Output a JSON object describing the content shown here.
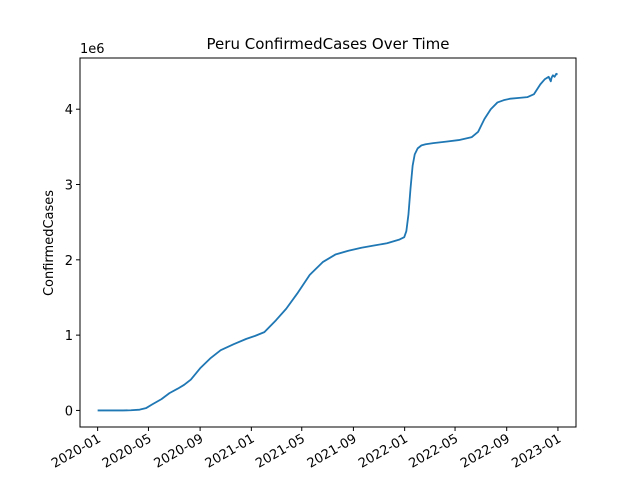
{
  "chart_data": {
    "type": "line",
    "title": "Peru  ConfirmedCases Over Time",
    "xlabel": "",
    "ylabel": "ConfirmedCases",
    "y_offset_label": "1e6",
    "y_scale_factor": 1000000,
    "xlim": [
      "2019-11-20",
      "2023-02-13"
    ],
    "ylim": [
      -220000,
      4680000
    ],
    "grid": false,
    "line_color": "#1f77b4",
    "x_ticks": [
      "2020-01-01",
      "2020-05-01",
      "2020-09-01",
      "2021-01-01",
      "2021-05-01",
      "2021-09-01",
      "2022-01-01",
      "2022-05-01",
      "2022-09-01",
      "2023-01-01"
    ],
    "x_tick_labels": [
      "2020-01",
      "2020-05",
      "2020-09",
      "2021-01",
      "2021-05",
      "2021-09",
      "2022-01",
      "2022-05",
      "2022-09",
      "2023-01"
    ],
    "y_ticks": [
      0,
      1000000,
      2000000,
      3000000,
      4000000
    ],
    "y_tick_labels": [
      "0",
      "1",
      "2",
      "3",
      "4"
    ],
    "series": [
      {
        "x": [
          "2020-01-01",
          "2020-03-01",
          "2020-03-20",
          "2020-04-10",
          "2020-04-25",
          "2020-05-10",
          "2020-06-01",
          "2020-06-20",
          "2020-07-10",
          "2020-07-25",
          "2020-08-10",
          "2020-09-01",
          "2020-09-25",
          "2020-10-20",
          "2020-11-20",
          "2020-12-20",
          "2021-01-10",
          "2021-02-01",
          "2021-03-01",
          "2021-03-25",
          "2021-04-20",
          "2021-05-20",
          "2021-06-20",
          "2021-07-20",
          "2021-08-20",
          "2021-09-20",
          "2021-10-20",
          "2021-11-20",
          "2021-12-20",
          "2021-12-31",
          "2022-01-05",
          "2022-01-10",
          "2022-01-15",
          "2022-01-20",
          "2022-01-25",
          "2022-02-01",
          "2022-02-10",
          "2022-02-20",
          "2022-03-10",
          "2022-04-10",
          "2022-05-10",
          "2022-06-10",
          "2022-06-25",
          "2022-07-10",
          "2022-07-25",
          "2022-08-10",
          "2022-08-25",
          "2022-09-10",
          "2022-10-01",
          "2022-10-20",
          "2022-11-05",
          "2022-11-20",
          "2022-12-01",
          "2022-12-10",
          "2022-12-15",
          "2022-12-17",
          "2022-12-20",
          "2022-12-24",
          "2022-12-28",
          "2022-12-31"
        ],
        "y": [
          0,
          0,
          2000,
          10000,
          30000,
          80000,
          150000,
          230000,
          290000,
          340000,
          410000,
          560000,
          690000,
          800000,
          880000,
          950000,
          990000,
          1040000,
          1200000,
          1350000,
          1550000,
          1800000,
          1970000,
          2070000,
          2120000,
          2160000,
          2190000,
          2220000,
          2270000,
          2300000,
          2380000,
          2600000,
          2950000,
          3250000,
          3400000,
          3480000,
          3520000,
          3535000,
          3550000,
          3570000,
          3590000,
          3630000,
          3700000,
          3870000,
          4000000,
          4090000,
          4120000,
          4140000,
          4150000,
          4160000,
          4200000,
          4330000,
          4400000,
          4430000,
          4370000,
          4420000,
          4450000,
          4430000,
          4470000,
          4460000
        ]
      }
    ]
  }
}
